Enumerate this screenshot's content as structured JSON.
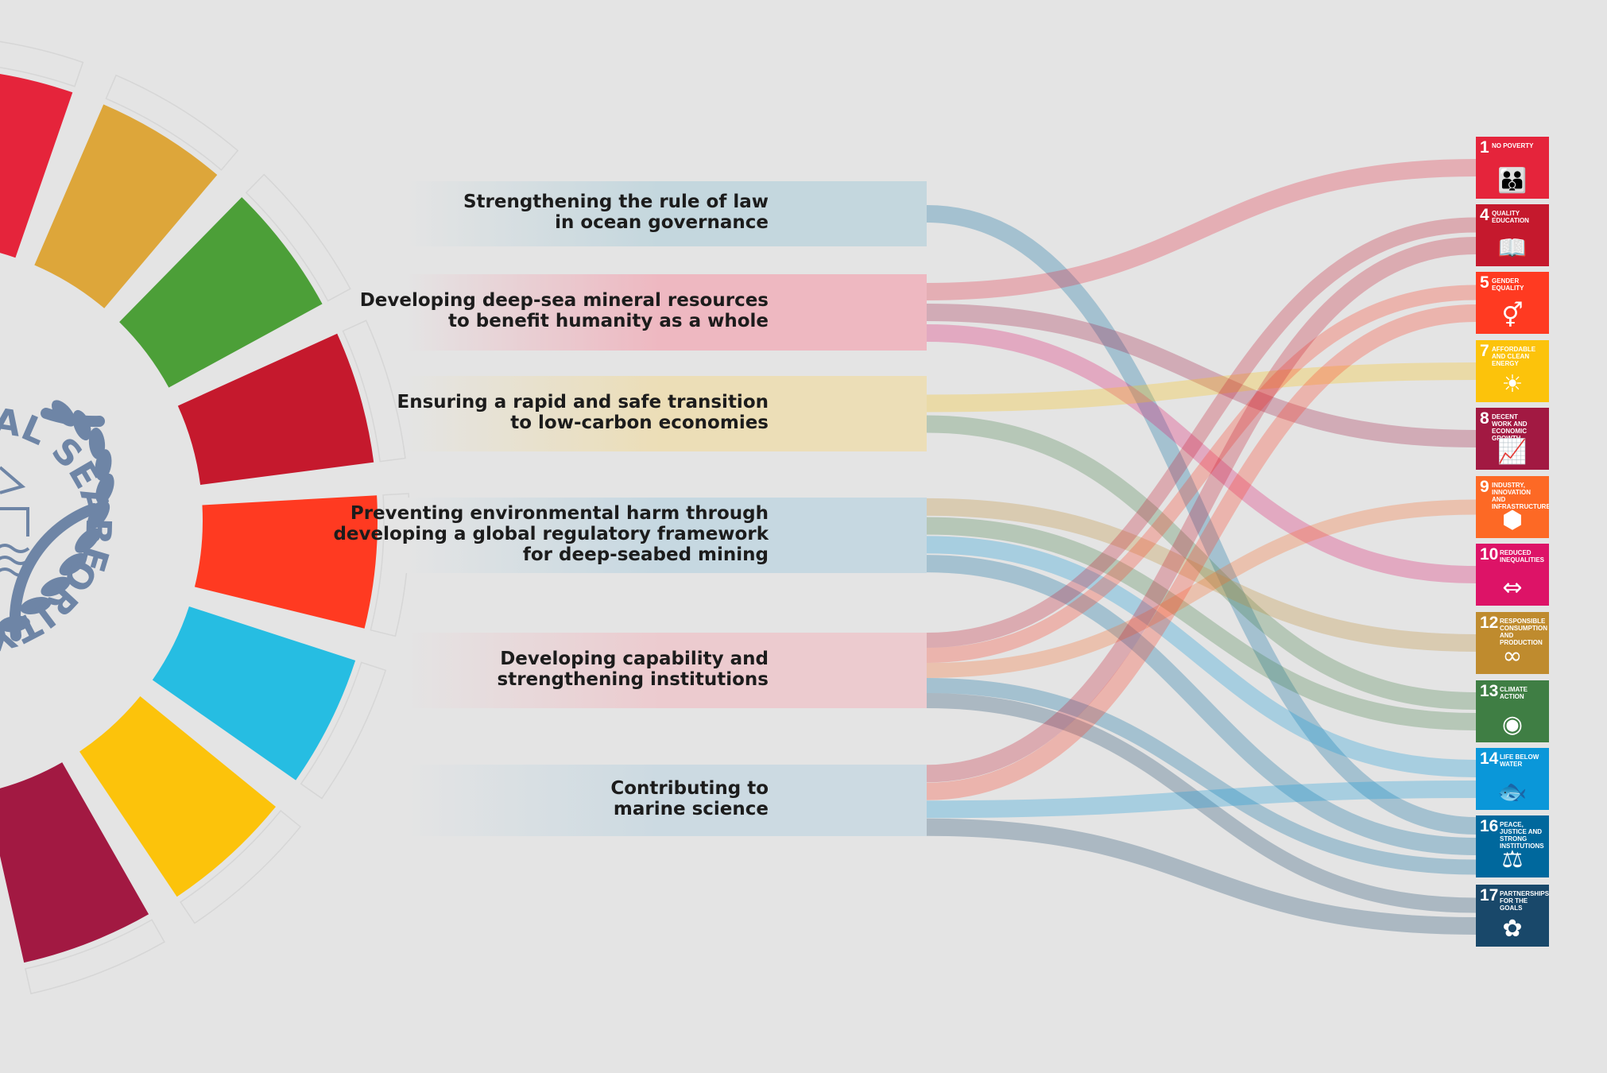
{
  "logo": {
    "text_top": "AL SEABED",
    "text_bottom": "ORITY"
  },
  "wheel": {
    "segment_colors": [
      "#e5243b",
      "#dda63a",
      "#4c9f38",
      "#c5192d",
      "#ff3a21",
      "#26bde2",
      "#fcc30b",
      "#a21942",
      "#fd6925",
      "#dd1367",
      "#fd9d24",
      "#bf8b2e",
      "#3f7e44",
      "#0a97d9",
      "#56c02b",
      "#00689d",
      "#19486a"
    ]
  },
  "priorities": [
    {
      "id": "rule-of-law",
      "lines": [
        "Strengthening the rule of law",
        "in ocean governance"
      ],
      "color": "#b9d3dc"
    },
    {
      "id": "deep-sea-minerals",
      "lines": [
        "Developing deep-sea mineral resources",
        "to benefit humanity as a whole"
      ],
      "color": "#f2a9b6"
    },
    {
      "id": "low-carbon",
      "lines": [
        "Ensuring a rapid and safe transition",
        "to low-carbon economies"
      ],
      "color": "#efdca8"
    },
    {
      "id": "env-harm",
      "lines": [
        "Preventing environmental harm through",
        "developing a global regulatory framework",
        "for deep-seabed mining"
      ],
      "color": "#bcd4e0"
    },
    {
      "id": "capability",
      "lines": [
        "Developing capability and",
        "strengthening institutions"
      ],
      "color": "#efc3c8"
    },
    {
      "id": "marine-science",
      "lines": [
        "Contributing to",
        "marine science"
      ],
      "color": "#c4d7e2"
    }
  ],
  "sdgs": [
    {
      "num": "1",
      "title": "No poverty",
      "color": "#e5243b",
      "icon": "people-icon",
      "glyph": "👪"
    },
    {
      "num": "4",
      "title": "Quality education",
      "color": "#c5192d",
      "icon": "book-icon",
      "glyph": "📖"
    },
    {
      "num": "5",
      "title": "Gender equality",
      "color": "#ff3a21",
      "icon": "gender-icon",
      "glyph": "⚥"
    },
    {
      "num": "7",
      "title": "Affordable and clean energy",
      "color": "#fcc30b",
      "icon": "sun-icon",
      "glyph": "☀"
    },
    {
      "num": "8",
      "title": "Decent work and economic growth",
      "color": "#a21942",
      "icon": "growth-chart-icon",
      "glyph": "📈"
    },
    {
      "num": "9",
      "title": "Industry, innovation and infrastructure",
      "color": "#fd6925",
      "icon": "cubes-icon",
      "glyph": "⬢"
    },
    {
      "num": "10",
      "title": "Reduced inequalities",
      "color": "#dd1367",
      "icon": "equality-arrows-icon",
      "glyph": "⇔"
    },
    {
      "num": "12",
      "title": "Responsible consumption and production",
      "color": "#bf8b2e",
      "icon": "infinity-icon",
      "glyph": "∞"
    },
    {
      "num": "13",
      "title": "Climate action",
      "color": "#3f7e44",
      "icon": "earth-eye-icon",
      "glyph": "◉"
    },
    {
      "num": "14",
      "title": "Life below water",
      "color": "#0a97d9",
      "icon": "fish-icon",
      "glyph": "🐟"
    },
    {
      "num": "16",
      "title": "Peace, justice and strong institutions",
      "color": "#00689d",
      "icon": "dove-gavel-icon",
      "glyph": "⚖"
    },
    {
      "num": "17",
      "title": "Partnerships for the goals",
      "color": "#19486a",
      "icon": "flower-rings-icon",
      "glyph": "✿"
    }
  ],
  "links": [
    {
      "from": "rule-of-law",
      "to": "16"
    },
    {
      "from": "deep-sea-minerals",
      "to": "1"
    },
    {
      "from": "deep-sea-minerals",
      "to": "8"
    },
    {
      "from": "deep-sea-minerals",
      "to": "10"
    },
    {
      "from": "low-carbon",
      "to": "7"
    },
    {
      "from": "low-carbon",
      "to": "13"
    },
    {
      "from": "env-harm",
      "to": "12"
    },
    {
      "from": "env-harm",
      "to": "13"
    },
    {
      "from": "env-harm",
      "to": "14"
    },
    {
      "from": "env-harm",
      "to": "16"
    },
    {
      "from": "capability",
      "to": "4"
    },
    {
      "from": "capability",
      "to": "5"
    },
    {
      "from": "capability",
      "to": "9"
    },
    {
      "from": "capability",
      "to": "16"
    },
    {
      "from": "capability",
      "to": "17"
    },
    {
      "from": "marine-science",
      "to": "4"
    },
    {
      "from": "marine-science",
      "to": "5"
    },
    {
      "from": "marine-science",
      "to": "14"
    },
    {
      "from": "marine-science",
      "to": "17"
    }
  ]
}
